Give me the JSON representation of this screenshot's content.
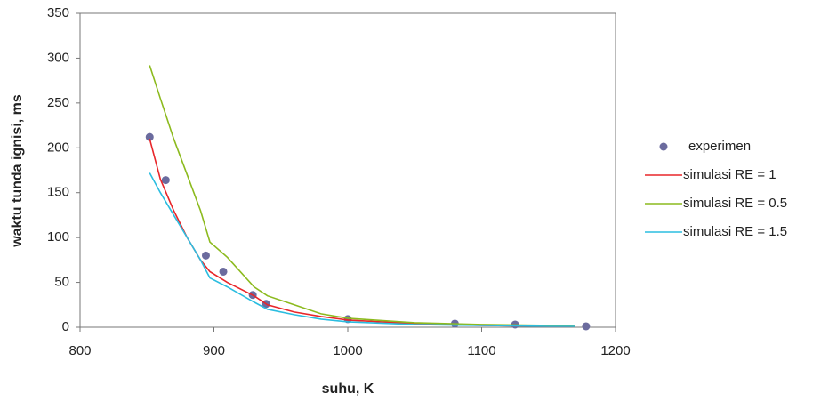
{
  "chart_data": {
    "type": "scatter",
    "xlabel": "suhu, K",
    "ylabel": "waktu tunda ignisi, ms",
    "xlim": [
      800,
      1200
    ],
    "xticks": [
      800,
      900,
      1000,
      1100,
      1200
    ],
    "ylim": [
      0,
      350
    ],
    "yticks": [
      0,
      50,
      100,
      150,
      200,
      250,
      300,
      350
    ],
    "legend": "right",
    "series": [
      {
        "name": "experimen",
        "color": "#6b6b9e",
        "mode": "markers",
        "x": [
          852,
          864,
          894,
          907,
          929,
          939,
          1000,
          1080,
          1125,
          1178
        ],
        "values": [
          212,
          164,
          80,
          62,
          36,
          26,
          9,
          4,
          3,
          1
        ]
      },
      {
        "name": "simulasi RE = 1",
        "color": "#e8262a",
        "mode": "line",
        "x": [
          852,
          860,
          870,
          880,
          890,
          897,
          910,
          930,
          940,
          960,
          980,
          1000,
          1050,
          1100,
          1150,
          1170
        ],
        "values": [
          210,
          165,
          130,
          100,
          75,
          62,
          50,
          35,
          25,
          17,
          12,
          8,
          4,
          2,
          1,
          1
        ]
      },
      {
        "name": "simulasi RE = 0.5",
        "color": "#8cba1e",
        "mode": "line",
        "x": [
          852,
          860,
          870,
          880,
          890,
          897,
          910,
          930,
          940,
          960,
          980,
          1000,
          1050,
          1100,
          1150,
          1170
        ],
        "values": [
          292,
          255,
          210,
          170,
          130,
          95,
          78,
          45,
          35,
          25,
          15,
          10,
          5,
          3,
          2,
          1
        ]
      },
      {
        "name": "simulasi RE = 1.5",
        "color": "#2bbde0",
        "mode": "line",
        "x": [
          852,
          860,
          870,
          880,
          890,
          897,
          910,
          930,
          940,
          960,
          980,
          1000,
          1050,
          1100,
          1150,
          1170
        ],
        "values": [
          172,
          150,
          125,
          100,
          75,
          55,
          45,
          28,
          20,
          14,
          9,
          6,
          3,
          2,
          1,
          1
        ]
      }
    ]
  }
}
